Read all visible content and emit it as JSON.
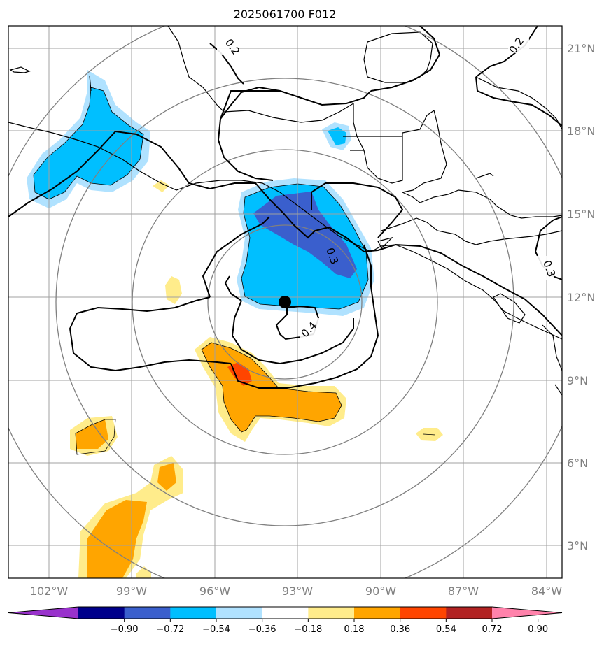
{
  "title": "2025061700 F012",
  "map": {
    "lon_labels": [
      "102°W",
      "99°W",
      "96°W",
      "93°W",
      "90°W",
      "87°W",
      "84°W"
    ],
    "lat_labels": [
      "21°N",
      "18°N",
      "15°N",
      "12°N",
      "9°N",
      "6°N",
      "3°N"
    ],
    "lon_values": [
      -102,
      -99,
      -96,
      -93,
      -90,
      -87,
      -84
    ],
    "lat_values": [
      21,
      18,
      15,
      12,
      9,
      6,
      3
    ],
    "extent": {
      "lon_min": -103.5,
      "lon_max": -83.5,
      "lat_min": 1.5,
      "lat_max": 22.0
    },
    "center_marker": {
      "lon": -93.45,
      "lat": 11.8
    },
    "contour_labels": [
      "0.2",
      "0.2",
      "0.3",
      "0.3",
      "0.4"
    ]
  },
  "colorbar": {
    "tick_labels": [
      "−0.90",
      "−0.72",
      "−0.54",
      "−0.36",
      "−0.18",
      "0.18",
      "0.36",
      "0.54",
      "0.72",
      "0.90"
    ],
    "colors": [
      "#9932cc",
      "#00008b",
      "#3a5fcd",
      "#00bfff",
      "#b0e2ff",
      "#ffffff",
      "#ffec8b",
      "#ffa500",
      "#ff4500",
      "#b22222",
      "#ff82ab"
    ]
  }
}
